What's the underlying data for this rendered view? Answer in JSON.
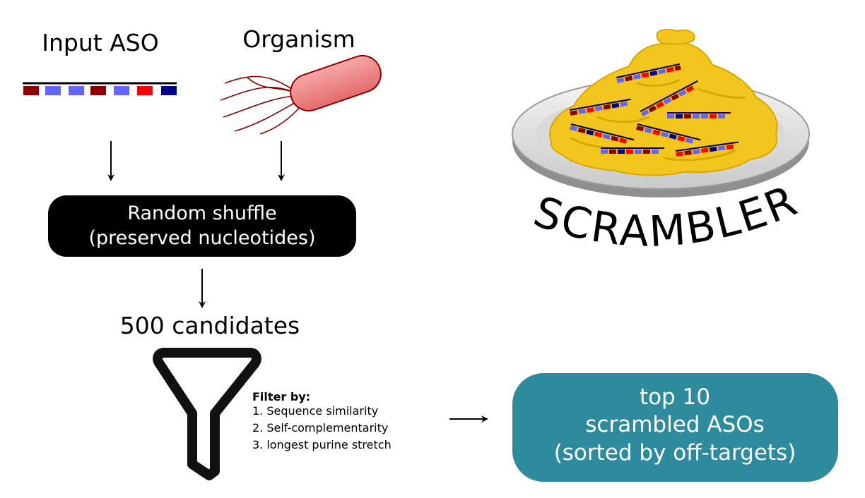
{
  "labels": {
    "input_aso": "Input ASO",
    "organism": "Organism",
    "shuffle_line1": "Random shuffle",
    "shuffle_line2": "(preserved nucleotides)",
    "candidates": "500 candidates",
    "filter_title": "Filter by:",
    "filter_items": [
      "1. Sequence similarity",
      "2. Self-complementarity",
      "3. longest purine stretch"
    ],
    "result_line1": "top 10",
    "result_line2": "scrambled ASOs",
    "result_line3": "(sorted by off-targets)",
    "logo_text": "SCRAMBLER"
  },
  "colors": {
    "dark_red": "#8b0000",
    "light_blue": "#6464ff",
    "bright_red": "#ff0000",
    "navy": "#00008b",
    "bacterium_fill": "#f08080",
    "bacterium_outline": "#8b0000",
    "shuffle_box": "#000000",
    "result_box": "#2e8b9d",
    "egg_yellow": "#f2c61f",
    "plate_grey": "#b3b3b3"
  },
  "icons": {
    "aso_strand": "aso-strand-icon",
    "bacterium": "bacterium-icon",
    "funnel": "funnel-icon",
    "scrambled_eggs": "scrambled-eggs-plate-icon"
  }
}
